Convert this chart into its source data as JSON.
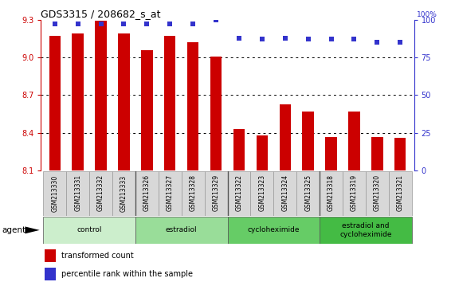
{
  "title": "GDS3315 / 208682_s_at",
  "categories": [
    "GSM213330",
    "GSM213331",
    "GSM213332",
    "GSM213333",
    "GSM213326",
    "GSM213327",
    "GSM213328",
    "GSM213329",
    "GSM213322",
    "GSM213323",
    "GSM213324",
    "GSM213325",
    "GSM213318",
    "GSM213319",
    "GSM213320",
    "GSM213321"
  ],
  "bar_values": [
    9.17,
    9.19,
    9.29,
    9.19,
    9.06,
    9.17,
    9.12,
    9.01,
    8.43,
    8.38,
    8.63,
    8.57,
    8.37,
    8.57,
    8.37,
    8.36
  ],
  "dot_values": [
    97,
    97,
    97,
    97,
    97,
    97,
    97,
    100,
    88,
    87,
    88,
    87,
    87,
    87,
    85,
    85
  ],
  "ylim_left": [
    8.1,
    9.3
  ],
  "ylim_right": [
    0,
    100
  ],
  "yticks_left": [
    8.1,
    8.4,
    8.7,
    9.0,
    9.3
  ],
  "yticks_right": [
    0,
    25,
    50,
    75,
    100
  ],
  "bar_color": "#CC0000",
  "dot_color": "#3333CC",
  "bar_bottom": 8.1,
  "groups": [
    {
      "label": "control",
      "start": 0,
      "end": 4,
      "color": "#cceecc"
    },
    {
      "label": "estradiol",
      "start": 4,
      "end": 8,
      "color": "#99dd99"
    },
    {
      "label": "cycloheximide",
      "start": 8,
      "end": 12,
      "color": "#66cc66"
    },
    {
      "label": "estradiol and\ncycloheximide",
      "start": 12,
      "end": 16,
      "color": "#44bb44"
    }
  ],
  "legend_bar_label": "transformed count",
  "legend_dot_label": "percentile rank within the sample",
  "xlabel_agent": "agent",
  "background_color": "#ffffff",
  "tick_fontsize": 7,
  "bar_width": 0.5
}
